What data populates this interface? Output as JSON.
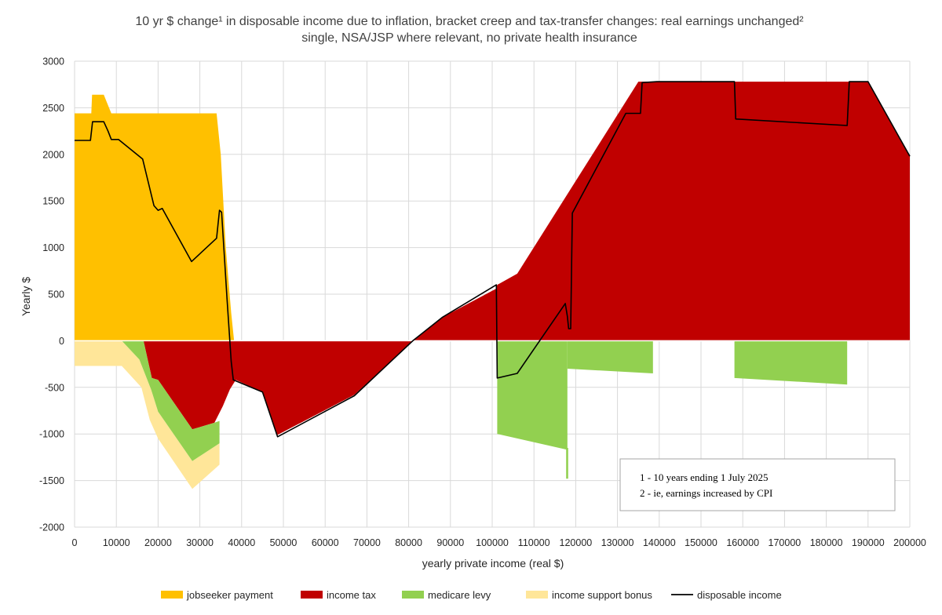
{
  "chart_data": {
    "type": "area",
    "title_line1": "10 yr $ change¹ in disposable income due to inflation, bracket creep and tax-transfer changes: real earnings unchanged²",
    "title_line2": "single, NSA/JSP where relevant, no private health insurance",
    "xlabel": "yearly private income (real $)",
    "ylabel": "Yearly $",
    "xlim": [
      0,
      200000
    ],
    "ylim": [
      -2000,
      3000
    ],
    "x_ticks": [
      0,
      10000,
      20000,
      30000,
      40000,
      50000,
      60000,
      70000,
      80000,
      90000,
      100000,
      110000,
      120000,
      130000,
      140000,
      150000,
      160000,
      170000,
      180000,
      190000,
      200000
    ],
    "y_ticks": [
      -2000,
      -1500,
      -1000,
      -500,
      0,
      500,
      1000,
      1500,
      2000,
      2500,
      3000
    ],
    "notes": [
      "1 - 10 years ending 1 July 2025",
      "2 - ie, earnings increased by CPI"
    ],
    "legend": [
      {
        "label": "jobseeker payment",
        "color": "#ffc000",
        "kind": "area"
      },
      {
        "label": "income tax",
        "color": "#c00000",
        "kind": "area"
      },
      {
        "label": "medicare levy",
        "color": "#92d050",
        "kind": "area"
      },
      {
        "label": "income support bonus",
        "color": "#ffe699",
        "kind": "area"
      },
      {
        "label": "disposable income",
        "color": "#000000",
        "kind": "line"
      }
    ],
    "series": [
      {
        "name": "jobseeker payment",
        "color": "#ffc000",
        "points": [
          [
            0,
            0
          ],
          [
            0,
            2440
          ],
          [
            4000,
            2440
          ],
          [
            4200,
            2640
          ],
          [
            7000,
            2640
          ],
          [
            8800,
            2440
          ],
          [
            34000,
            2440
          ],
          [
            35000,
            2000
          ],
          [
            36200,
            1000
          ],
          [
            37500,
            300
          ],
          [
            38200,
            0
          ]
        ]
      },
      {
        "name": "income tax",
        "color": "#c00000",
        "points": [
          [
            16500,
            0
          ],
          [
            18500,
            -400
          ],
          [
            20000,
            -420
          ],
          [
            28200,
            -950
          ],
          [
            33500,
            -880
          ],
          [
            35500,
            -700
          ],
          [
            37200,
            -520
          ],
          [
            38600,
            -420
          ],
          [
            45000,
            -550
          ],
          [
            48600,
            -1010
          ],
          [
            67000,
            -580
          ],
          [
            81000,
            0
          ],
          [
            88000,
            250
          ],
          [
            101000,
            560
          ],
          [
            101200,
            600
          ],
          [
            106000,
            720
          ],
          [
            135000,
            2780
          ],
          [
            190000,
            2780
          ],
          [
            200000,
            1980
          ],
          [
            200000,
            0
          ]
        ]
      },
      {
        "name": "medicare levy",
        "color": "#92d050",
        "shapes": [
          [
            [
              16500,
              0
            ],
            [
              18500,
              -400
            ],
            [
              20000,
              -420
            ],
            [
              28200,
              -950
            ],
            [
              33500,
              -880
            ],
            [
              34700,
              -860
            ],
            [
              34700,
              -1100
            ],
            [
              28200,
              -1290
            ],
            [
              20000,
              -760
            ],
            [
              18300,
              -520
            ],
            [
              15500,
              -200
            ],
            [
              11300,
              0
            ]
          ],
          [
            [
              101200,
              0
            ],
            [
              101200,
              -1000
            ],
            [
              118000,
              -1170
            ],
            [
              118000,
              0
            ]
          ],
          [
            [
              118000,
              0
            ],
            [
              118000,
              -300
            ],
            [
              138500,
              -350
            ],
            [
              138500,
              0
            ]
          ],
          [
            [
              158000,
              0
            ],
            [
              158000,
              -400
            ],
            [
              185000,
              -470
            ],
            [
              185000,
              0
            ]
          ],
          [
            [
              117700,
              -1150
            ],
            [
              118200,
              -1150
            ],
            [
              118200,
              -1480
            ],
            [
              117700,
              -1480
            ]
          ]
        ]
      },
      {
        "name": "income support bonus",
        "color": "#ffe699",
        "shapes": [
          [
            [
              0,
              0
            ],
            [
              11300,
              0
            ],
            [
              15500,
              -200
            ],
            [
              18300,
              -520
            ],
            [
              20000,
              -760
            ],
            [
              28200,
              -1290
            ],
            [
              34700,
              -1100
            ],
            [
              34700,
              -1330
            ],
            [
              28200,
              -1590
            ],
            [
              20000,
              -1050
            ],
            [
              18000,
              -850
            ],
            [
              16000,
              -500
            ],
            [
              11300,
              -270
            ],
            [
              0,
              -270
            ]
          ]
        ]
      },
      {
        "name": "disposable income",
        "color": "#000000",
        "points": [
          [
            0,
            2150
          ],
          [
            3800,
            2150
          ],
          [
            4300,
            2350
          ],
          [
            5700,
            2350
          ],
          [
            7000,
            2350
          ],
          [
            8000,
            2250
          ],
          [
            8800,
            2160
          ],
          [
            10500,
            2160
          ],
          [
            16300,
            1950
          ],
          [
            19000,
            1450
          ],
          [
            20000,
            1400
          ],
          [
            21000,
            1420
          ],
          [
            28000,
            850
          ],
          [
            34000,
            1100
          ],
          [
            34700,
            1400
          ],
          [
            35200,
            1380
          ],
          [
            36500,
            450
          ],
          [
            37500,
            -220
          ],
          [
            38000,
            -420
          ],
          [
            45000,
            -550
          ],
          [
            48600,
            -1030
          ],
          [
            67000,
            -590
          ],
          [
            81000,
            0
          ],
          [
            88000,
            250
          ],
          [
            101000,
            600
          ],
          [
            101200,
            -400
          ],
          [
            106000,
            -350
          ],
          [
            117500,
            400
          ],
          [
            118000,
            260
          ],
          [
            118300,
            130
          ],
          [
            118800,
            130
          ],
          [
            119200,
            1370
          ],
          [
            132000,
            2440
          ],
          [
            135500,
            2440
          ],
          [
            135900,
            2770
          ],
          [
            139500,
            2780
          ],
          [
            158000,
            2780
          ],
          [
            158300,
            2380
          ],
          [
            185000,
            2310
          ],
          [
            185500,
            2780
          ],
          [
            190000,
            2780
          ],
          [
            200000,
            1980
          ]
        ]
      }
    ]
  }
}
